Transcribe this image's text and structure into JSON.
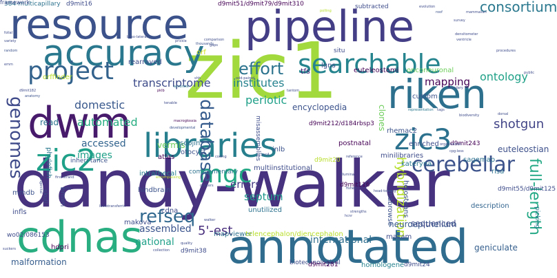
{
  "palette": {
    "background": "#ffffff",
    "scheme": "viridis"
  },
  "words": [
    {
      "text": "zic1",
      "weight": 100,
      "color": "#a2d93c"
    },
    {
      "text": "dandy-walker",
      "weight": 92,
      "color": "#46327e"
    },
    {
      "text": "pipeline",
      "weight": 70,
      "color": "#433e85"
    },
    {
      "text": "resource",
      "weight": 66,
      "color": "#3b528b"
    },
    {
      "text": "annotated",
      "weight": 64,
      "color": "#2f6c8e"
    },
    {
      "text": "cdnas",
      "weight": 62,
      "color": "#28ae80"
    },
    {
      "text": "dwm",
      "weight": 60,
      "color": "#481a6c"
    },
    {
      "text": "riken",
      "weight": 56,
      "color": "#2d708e"
    },
    {
      "text": "accuracy",
      "weight": 52,
      "color": "#2a788e"
    },
    {
      "text": "libraries",
      "weight": 46,
      "color": "#277f8e"
    },
    {
      "text": "zic2",
      "weight": 44,
      "color": "#1fa088"
    },
    {
      "text": "zic3",
      "weight": 44,
      "color": "#2c728e"
    },
    {
      "text": "searchable",
      "weight": 40,
      "color": "#25848e"
    },
    {
      "text": "project",
      "weight": 36,
      "color": "#33638d"
    },
    {
      "text": "mgc",
      "weight": 32,
      "color": "#22a884"
    },
    {
      "text": "cerebellar",
      "weight": 30,
      "color": "#3b528b"
    },
    {
      "text": "genomes",
      "weight": 26,
      "color": "#3e4a89"
    },
    {
      "text": "database",
      "weight": 26,
      "color": "#365c8d"
    },
    {
      "text": "refseq",
      "weight": 26,
      "color": "#31688e"
    },
    {
      "text": "effort",
      "weight": 24,
      "color": "#2c738e"
    },
    {
      "text": "full-length",
      "weight": 22,
      "color": "#22a884"
    },
    {
      "text": "consortium",
      "weight": 20,
      "color": "#2a788e"
    },
    {
      "text": "hybridization",
      "weight": 18,
      "color": "#b5de2b"
    },
    {
      "text": "5'-est",
      "weight": 18,
      "color": "#472d7b"
    },
    {
      "text": "shotgun",
      "weight": 18,
      "color": "#414487"
    },
    {
      "text": "transcriptome",
      "weight": 16,
      "color": "#3e4c8a"
    },
    {
      "text": "ontology",
      "weight": 16,
      "color": "#1fa187"
    },
    {
      "text": "domestic",
      "weight": 16,
      "color": "#38588c"
    },
    {
      "text": "automated",
      "weight": 16,
      "color": "#27ad81"
    },
    {
      "text": "institutes",
      "weight": 16,
      "color": "#26828e"
    },
    {
      "text": "periotic",
      "weight": 16,
      "color": "#1fa088"
    },
    {
      "text": "mapping",
      "weight": 15,
      "color": "#440154"
    },
    {
      "text": "errors",
      "weight": 15,
      "color": "#443983"
    },
    {
      "text": "septum",
      "weight": 15,
      "color": "#1f978b"
    },
    {
      "text": "national",
      "weight": 14,
      "color": "#1fa088"
    },
    {
      "text": "assembled",
      "weight": 14,
      "color": "#3a548c"
    },
    {
      "text": "international",
      "weight": 14,
      "color": "#2e6e8e"
    },
    {
      "text": "accessed",
      "weight": 14,
      "color": "#32648e"
    },
    {
      "text": "images",
      "weight": 14,
      "color": "#1f9f88"
    },
    {
      "text": "encyclopedia",
      "weight": 12,
      "color": "#3b528b"
    },
    {
      "text": "vermis",
      "weight": 12,
      "color": "#6ccd5a"
    },
    {
      "text": "clones",
      "weight": 12,
      "color": "#6ccd5a"
    },
    {
      "text": "malformation",
      "weight": 12,
      "color": "#365d8d"
    },
    {
      "text": "neuroepithelium",
      "weight": 12,
      "color": "#375a8c"
    },
    {
      "text": "sequenced",
      "weight": 12,
      "color": "#3e4989"
    },
    {
      "text": "geniculate",
      "weight": 12,
      "color": "#355f8d"
    },
    {
      "text": "euteleostian",
      "weight": 12,
      "color": "#3c4f8a"
    },
    {
      "text": "read",
      "weight": 12,
      "color": "#2c728e"
    },
    {
      "text": "tfs",
      "weight": 12,
      "color": "#482878"
    },
    {
      "text": "description",
      "weight": 11,
      "color": "#32648e"
    },
    {
      "text": "postnatal",
      "weight": 10,
      "color": "#440154"
    },
    {
      "text": "orf",
      "weight": 10,
      "color": "#d2e21b"
    },
    {
      "text": "soojin",
      "weight": 10,
      "color": "#2c728e"
    },
    {
      "text": "otocyst",
      "weight": 10,
      "color": "#3b528b"
    },
    {
      "text": "rearrayed",
      "weight": 10,
      "color": "#3e4c8a"
    },
    {
      "text": "orffinder",
      "weight": 10,
      "color": "#b8de29"
    },
    {
      "text": "phylofish",
      "weight": 10,
      "color": "#2a788e"
    },
    {
      "text": "intrathecal",
      "weight": 10,
      "color": "#26828e"
    },
    {
      "text": "hindbrain",
      "weight": 10,
      "color": "#3b528b"
    },
    {
      "text": "cdna",
      "weight": 10,
      "color": "#3e4c8a"
    },
    {
      "text": "unutilized",
      "weight": 10,
      "color": "#2c728e"
    },
    {
      "text": "multiinstitutional",
      "weight": 10,
      "color": "#3e4c8a"
    },
    {
      "text": "atlas",
      "weight": 10,
      "color": "#440154"
    },
    {
      "text": "inlb",
      "weight": 10,
      "color": "#3b528b"
    },
    {
      "text": "rhemac2",
      "weight": 10,
      "color": "#3b528b"
    },
    {
      "text": "lgns",
      "weight": 10,
      "color": "#3e4c8a"
    },
    {
      "text": "custom",
      "weight": 10,
      "color": "#3b528b"
    },
    {
      "text": "enriched",
      "weight": 10,
      "color": "#3e4c8a"
    },
    {
      "text": "holosteans",
      "weight": 10,
      "color": "#3b528b"
    },
    {
      "text": "kateryna",
      "weight": 10,
      "color": "#2a788e"
    },
    {
      "text": "sagemap",
      "weight": 10,
      "color": "#2c728e"
    },
    {
      "text": "risa",
      "weight": 10,
      "color": "#2c728e"
    },
    {
      "text": "minilibraries",
      "weight": 10,
      "color": "#3e4c8a"
    },
    {
      "text": "rnabrowse",
      "weight": 10,
      "color": "#3b528b"
    },
    {
      "text": "homologene",
      "weight": 10,
      "color": "#26828e"
    },
    {
      "text": "makova",
      "weight": 10,
      "color": "#3e4c8a"
    },
    {
      "text": "mmdb",
      "weight": 10,
      "color": "#3b528b"
    },
    {
      "text": "omim",
      "weight": 10,
      "color": "#3e4c8a"
    },
    {
      "text": "infls",
      "weight": 10,
      "color": "#3e4c8a"
    },
    {
      "text": "macam",
      "weight": 10,
      "color": "#3e4c8a"
    },
    {
      "text": "mapviewer",
      "weight": 10,
      "color": "#2c728e"
    },
    {
      "text": "hdpri",
      "weight": 10,
      "color": "#440154"
    },
    {
      "text": "telencephalon/diencephalon",
      "weight": 10,
      "color": "#b8de29"
    },
    {
      "text": "euteleostomi",
      "weight": 10,
      "color": "#440154"
    },
    {
      "text": "onconeuronal",
      "weight": 10,
      "color": "#6ccd5a"
    },
    {
      "text": "misassemblies",
      "weight": 10,
      "color": "#3e4c8a"
    },
    {
      "text": "complementary",
      "weight": 9,
      "color": "#2c728e"
    },
    {
      "text": "inheri-tance",
      "weight": 9,
      "color": "#3b528b"
    },
    {
      "text": "picking",
      "weight": 9,
      "color": "#2a788e"
    },
    {
      "text": "biotechnological",
      "weight": 9,
      "color": "#3e4c8a"
    },
    {
      "text": "subtracted",
      "weight": 9,
      "color": "#3e4c8a"
    },
    {
      "text": "situ",
      "weight": 9,
      "color": "#3e4c8a"
    },
    {
      "text": "skull",
      "weight": 9,
      "color": "#3e4c8a"
    },
    {
      "text": "384-multicapillary",
      "weight": 9,
      "color": "#2c728e"
    },
    {
      "text": "d9mit16",
      "weight": 9,
      "color": "#3e4c8a"
    },
    {
      "text": "d9mit51/d9mit79/d9mit310",
      "weight": 9,
      "color": "#440154"
    },
    {
      "text": "d9mit212/d184rbsp3",
      "weight": 9,
      "color": "#440154"
    },
    {
      "text": "d9mit243",
      "weight": 9,
      "color": "#440154"
    },
    {
      "text": "d9mit20",
      "weight": 9,
      "color": "#b8de29"
    },
    {
      "text": "d9mit116",
      "weight": 9,
      "color": "#440154"
    },
    {
      "text": "d9mit55/d9mit125",
      "weight": 9,
      "color": "#3e4c8a"
    },
    {
      "text": "wo02/086153",
      "weight": 9,
      "color": "#3e4c8a"
    },
    {
      "text": "d9mit38",
      "weight": 9,
      "color": "#3e4c8a"
    },
    {
      "text": "d9mit281",
      "weight": 9,
      "color": "#440154"
    },
    {
      "text": "d9mit24",
      "weight": 9,
      "color": "#3e4c8a"
    },
    {
      "text": "d9mit182",
      "weight": 9,
      "color": "#3e4c8a"
    },
    {
      "text": "anatomy",
      "weight": 5,
      "color": "#3b528b"
    },
    {
      "text": "macroglossia",
      "weight": 5,
      "color": "#440154"
    },
    {
      "text": "developmental",
      "weight": 5,
      "color": "#3b528b"
    },
    {
      "text": "tenable",
      "weight": 5,
      "color": "#3e4c8a"
    },
    {
      "text": "pklb",
      "weight": 5,
      "color": "#440154"
    },
    {
      "text": "accurate",
      "weight": 5,
      "color": "#2a788e"
    },
    {
      "text": "shh",
      "weight": 5,
      "color": "#3e4c8a"
    },
    {
      "text": "comparison",
      "weight": 5,
      "color": "#3e4c8a"
    },
    {
      "text": "thousands",
      "weight": 5,
      "color": "#3b528b"
    },
    {
      "text": "prickle",
      "weight": 5,
      "color": "#3e4c8a"
    },
    {
      "text": "folial",
      "weight": 5,
      "color": "#3e4c8a"
    },
    {
      "text": "variety",
      "weight": 5,
      "color": "#3e4c8a"
    },
    {
      "text": "random",
      "weight": 5,
      "color": "#3b528b"
    },
    {
      "text": "emm",
      "weight": 5,
      "color": "#3e4c8a"
    },
    {
      "text": "baso-lateral",
      "weight": 5,
      "color": "#3e4c8a"
    },
    {
      "text": "gaps",
      "weight": 5,
      "color": "#3e4c8a"
    },
    {
      "text": "roof",
      "weight": 5,
      "color": "#3b528b"
    },
    {
      "text": "mammalian",
      "weight": 5,
      "color": "#3e4c8a"
    },
    {
      "text": "survey",
      "weight": 5,
      "color": "#3e4c8a"
    },
    {
      "text": "evolution",
      "weight": 5,
      "color": "#3e4c8a"
    },
    {
      "text": "polling",
      "weight": 5,
      "color": "#b8de29"
    },
    {
      "text": "densitometer",
      "weight": 5,
      "color": "#3e4c8a"
    },
    {
      "text": "ventricle",
      "weight": 5,
      "color": "#3e4c8a"
    },
    {
      "text": "procedures",
      "weight": 5,
      "color": "#3e4c8a"
    },
    {
      "text": "boundary",
      "weight": 5,
      "color": "#3e4c8a"
    },
    {
      "text": "public",
      "weight": 5,
      "color": "#3e4c8a"
    },
    {
      "text": "representation",
      "weight": 5,
      "color": "#2a788e"
    },
    {
      "text": "tags",
      "weight": 5,
      "color": "#3e4c8a"
    },
    {
      "text": "biodiversity",
      "weight": 5,
      "color": "#3e4c8a"
    },
    {
      "text": "dorsal",
      "weight": 5,
      "color": "#3e4c8a"
    },
    {
      "text": "cpg-less",
      "weight": 5,
      "color": "#3e4c8a"
    },
    {
      "text": "illumina",
      "weight": 5,
      "color": "#3e4c8a"
    },
    {
      "text": "fishes",
      "weight": 5,
      "color": "#3e4c8a"
    },
    {
      "text": "hcnr",
      "weight": 5,
      "color": "#3e4c8a"
    },
    {
      "text": "head-tossing",
      "weight": 5,
      "color": "#3e4c8a"
    },
    {
      "text": "contig",
      "weight": 5,
      "color": "#3e4c8a"
    },
    {
      "text": "strengths",
      "weight": 5,
      "color": "#3e4c8a"
    },
    {
      "text": "walker",
      "weight": 5,
      "color": "#3e4c8a"
    },
    {
      "text": "quality",
      "weight": 5,
      "color": "#3e4c8a"
    },
    {
      "text": "collection",
      "weight": 5,
      "color": "#3e4c8a"
    },
    {
      "text": "suckers",
      "weight": 5,
      "color": "#3e4c8a"
    },
    {
      "text": "encompassing",
      "weight": 5,
      "color": "#b8de29"
    },
    {
      "text": "lactotransferrin",
      "weight": 5,
      "color": "#3e4c8a"
    },
    {
      "text": "cxxc4",
      "weight": 5,
      "color": "#3e4c8a"
    },
    {
      "text": "coding",
      "weight": 5,
      "color": "#3e4c8a"
    },
    {
      "text": "odd-paired",
      "weight": 5,
      "color": "#3e4c8a"
    },
    {
      "text": "tantom",
      "weight": 5,
      "color": "#3e4c8a"
    },
    {
      "text": "congenital",
      "weight": 5,
      "color": "#3e4c8a"
    },
    {
      "text": "organization",
      "weight": 5,
      "color": "#3e4c8a"
    },
    {
      "text": "first-strand",
      "weight": 5,
      "color": "#3e4c8a"
    },
    {
      "text": "reference",
      "weight": 5,
      "color": "#3e4c8a"
    },
    {
      "text": "clusters",
      "weight": 5,
      "color": "#3e4c8a"
    },
    {
      "text": "framework",
      "weight": 5,
      "color": "#3e4c8a"
    }
  ]
}
